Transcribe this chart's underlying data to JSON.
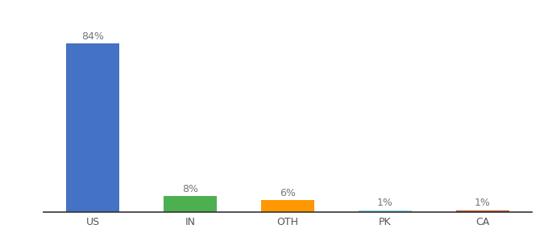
{
  "categories": [
    "US",
    "IN",
    "OTH",
    "PK",
    "CA"
  ],
  "values": [
    84,
    8,
    6,
    1,
    1
  ],
  "bar_colors": [
    "#4472c4",
    "#4caf50",
    "#ff9800",
    "#81d4fa",
    "#c0522a"
  ],
  "labels": [
    "84%",
    "8%",
    "6%",
    "1%",
    "1%"
  ],
  "background_color": "#ffffff",
  "label_fontsize": 9,
  "tick_fontsize": 9,
  "ylim": [
    0,
    96
  ],
  "bar_width": 0.55
}
